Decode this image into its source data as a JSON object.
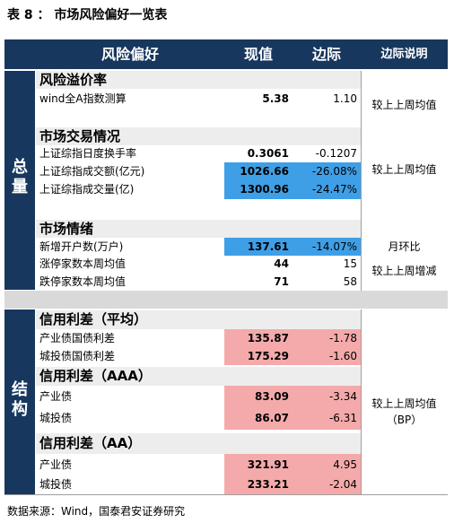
{
  "title": "表 8 ： 市场风险偏好一览表",
  "header": {
    "name": "风险偏好",
    "value": "现值",
    "margin": "边际",
    "desc": "边际说明"
  },
  "groups": {
    "total": "总量",
    "structure": "结构"
  },
  "sections": {
    "risk_premium": {
      "title": "风险溢价率",
      "rows": [
        {
          "label": "wind全A指数测算",
          "value": "5.38",
          "margin": "1.10"
        }
      ],
      "desc": "较上上周均值"
    },
    "trading": {
      "title": "市场交易情况",
      "rows": [
        {
          "label": "上证综指日度换手率",
          "value": "0.3061",
          "margin": "-0.1207"
        },
        {
          "label": "上证综指成交额(亿元)",
          "value": "1026.66",
          "margin": "-26.08%"
        },
        {
          "label": "上证综指成交量(亿)",
          "value": "1300.96",
          "margin": "-24.47%"
        }
      ],
      "desc": "较上上周均值"
    },
    "sentiment": {
      "title": "市场情绪",
      "rows": [
        {
          "label": "新增开户数(万户)",
          "value": "137.61",
          "margin": "-14.07%"
        },
        {
          "label": "涨停家数本周均值",
          "value": "44",
          "margin": "15"
        },
        {
          "label": "跌停家数本周均值",
          "value": "71",
          "margin": "58"
        }
      ],
      "desc_mom": "月环比",
      "desc_change": "较上上周增减"
    },
    "credit_avg": {
      "title": "信用利差（平均）",
      "rows": [
        {
          "label": "产业债国债利差",
          "value": "135.87",
          "margin": "-1.78"
        },
        {
          "label": "城投债国债利差",
          "value": "175.29",
          "margin": "-1.60"
        }
      ]
    },
    "credit_aaa": {
      "title": "信用利差（AAA）",
      "rows": [
        {
          "label": "产业债",
          "value": "83.09",
          "margin": "-3.34"
        },
        {
          "label": "城投债",
          "value": "86.07",
          "margin": "-6.31"
        }
      ]
    },
    "credit_aa": {
      "title": "信用利差（AA）",
      "rows": [
        {
          "label": "产业债",
          "value": "321.91",
          "margin": "4.95"
        },
        {
          "label": "城投债",
          "value": "233.21",
          "margin": "-2.04"
        }
      ]
    },
    "credit_desc_1": "较上上周均值",
    "credit_desc_2": "（BP）"
  },
  "colors": {
    "header": "#17375e",
    "highlight_blue": "#3f9fe6",
    "highlight_pink": "#f4aaaa",
    "category_bg": "#ededed"
  },
  "source": "数据来源：Wind，国泰君安证券研究"
}
